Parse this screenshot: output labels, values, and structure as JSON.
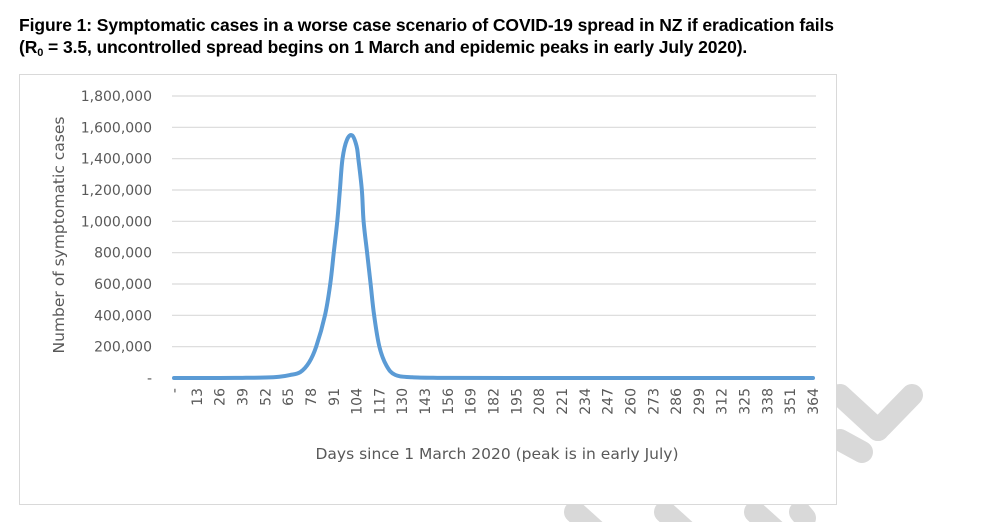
{
  "caption": {
    "line1": "Figure 1: Symptomatic cases in a worse case scenario of COVID-19 spread in NZ if eradication fails",
    "line2_prefix": "(R",
    "line2_sub": "0",
    "line2_suffix": " = 3.5, uncontrolled spread begins on 1 March and epidemic peaks in early July 2020)."
  },
  "colors": {
    "series": "#5b9bd5",
    "grid": "#d9d9d9",
    "text": "#595959",
    "watermark": "#d9d9d9"
  },
  "chart_data": {
    "type": "line",
    "title": "",
    "xlabel": "Days since 1 March 2020 (peak is in early July)",
    "ylabel": "Number of symptomatic cases",
    "xlim": [
      0,
      364
    ],
    "ylim": [
      0,
      1800000
    ],
    "grid": true,
    "legend": "none",
    "y_ticks": [
      0,
      200000,
      400000,
      600000,
      800000,
      1000000,
      1200000,
      1400000,
      1600000,
      1800000
    ],
    "y_tick_labels": [
      "-",
      "200,000",
      "400,000",
      "600,000",
      "800,000",
      "1,000,000",
      "1,200,000",
      "1,400,000",
      "1,600,000",
      "1,800,000"
    ],
    "x_ticks": [
      0,
      13,
      26,
      39,
      52,
      65,
      78,
      91,
      104,
      117,
      130,
      143,
      156,
      169,
      182,
      195,
      208,
      221,
      234,
      247,
      260,
      273,
      286,
      299,
      312,
      325,
      338,
      351,
      364
    ],
    "x_tick_labels": [
      "-",
      "13",
      "26",
      "39",
      "52",
      "65",
      "78",
      "91",
      "104",
      "117",
      "130",
      "143",
      "156",
      "169",
      "182",
      "195",
      "208",
      "221",
      "234",
      "247",
      "260",
      "273",
      "286",
      "299",
      "312",
      "325",
      "338",
      "351",
      "364"
    ],
    "series": [
      {
        "name": "Symptomatic cases",
        "x": [
          0,
          26,
          39,
          52,
          60,
          66,
          72,
          77,
          81,
          86,
          89,
          91,
          93,
          94.5,
          96,
          98.5,
          101.5,
          104,
          105,
          107,
          108,
          110,
          112,
          114,
          117,
          121,
          126,
          135,
          150,
          200,
          364
        ],
        "y": [
          0,
          300,
          1000,
          3000,
          8000,
          19000,
          38000,
          100000,
          200000,
          400000,
          600000,
          800000,
          1000000,
          1200000,
          1400000,
          1520000,
          1548000,
          1480000,
          1400000,
          1200000,
          1000000,
          800000,
          600000,
          400000,
          200000,
          80000,
          20000,
          5000,
          1000,
          0,
          0
        ]
      }
    ]
  }
}
